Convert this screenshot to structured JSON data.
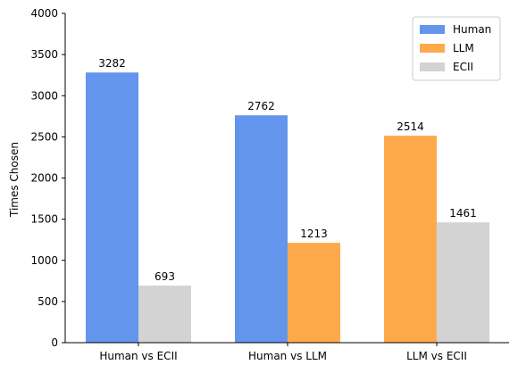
{
  "chart_data": {
    "type": "bar",
    "categories": [
      "Human vs ECII",
      "Human vs LLM",
      "LLM vs ECII"
    ],
    "series": [
      {
        "name": "Human",
        "color": "#6495ED",
        "values": [
          3282,
          2762,
          null
        ]
      },
      {
        "name": "LLM",
        "color": "#FFA94D",
        "values": [
          null,
          1213,
          2514
        ]
      },
      {
        "name": "ECII",
        "color": "#D3D3D3",
        "values": [
          693,
          null,
          1461
        ]
      }
    ],
    "pairs": [
      [
        "Human",
        "ECII"
      ],
      [
        "Human",
        "LLM"
      ],
      [
        "LLM",
        "ECII"
      ]
    ],
    "xlabel": "",
    "ylabel": "Times Chosen",
    "ylim": [
      0,
      4000
    ],
    "yticks": [
      0,
      500,
      1000,
      1500,
      2000,
      2500,
      3000,
      3500,
      4000
    ],
    "grid": false,
    "legend_position": "top-right",
    "data_labels": true
  }
}
